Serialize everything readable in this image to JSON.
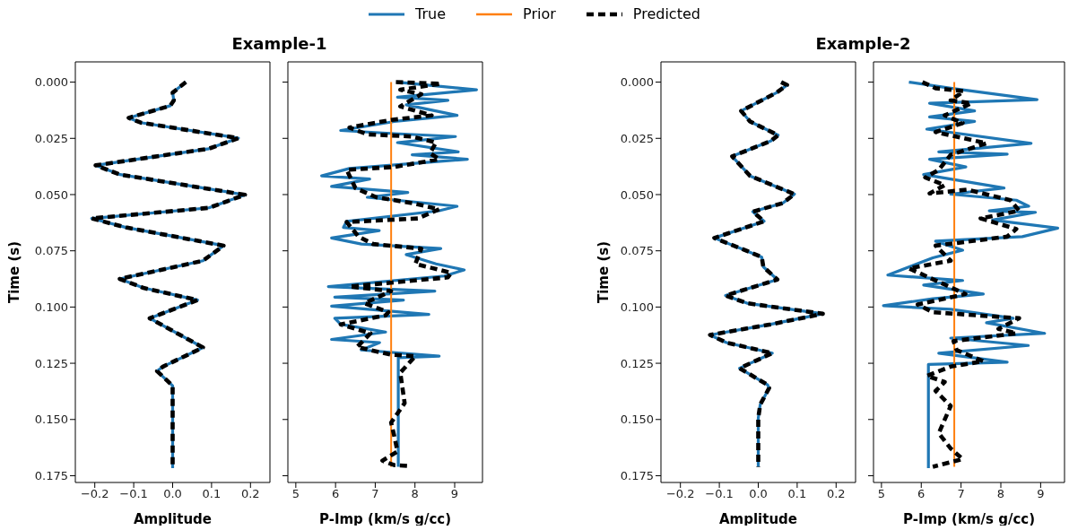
{
  "chart_data": [
    {
      "type": "line",
      "title": "Example-1",
      "xlabel": "Amplitude",
      "ylabel": "Time (s)",
      "xlim": [
        -0.25,
        0.25
      ],
      "xticks": [
        {
          "value": -0.2,
          "label": "−0.2"
        },
        {
          "value": -0.1,
          "label": "−0.1"
        },
        {
          "value": 0,
          "label": "0.0"
        },
        0.1,
        0.2
      ],
      "ylim": [
        0.178,
        -0.009
      ],
      "yticks": [
        {
          "value": 0,
          "label": "0.000"
        },
        0.025,
        {
          "value": 0.05,
          "label": "0.050"
        },
        0.075,
        {
          "value": 0.1,
          "label": "0.100"
        },
        0.125,
        {
          "value": 0.15,
          "label": "0.150"
        },
        0.175
      ],
      "series": [
        {
          "color": "#1f77b4",
          "line_style": "solid",
          "x": [
            0.034,
            0.0,
            0.003,
            -0.006,
            -0.113,
            -0.082,
            0.169,
            0.093,
            -0.198,
            -0.135,
            0.186,
            0.093,
            -0.208,
            -0.12,
            0.131,
            0.078,
            -0.136,
            -0.075,
            0.064,
            -0.059,
            0.078,
            -0.025,
            -0.04,
            0,
            0,
            0
          ],
          "values": [
            0,
            0.0047,
            0.0081,
            0.0105,
            0.0159,
            0.018,
            0.0249,
            0.0296,
            0.037,
            0.0411,
            0.0501,
            0.0559,
            0.0606,
            0.0646,
            0.0727,
            0.0794,
            0.0875,
            0.0915,
            0.0969,
            0.105,
            0.118,
            0.1265,
            0.1285,
            0.135,
            0.1494,
            0.1716
          ]
        },
        {
          "color": "#000000",
          "line_style": "dashed",
          "x": [
            0.034,
            0.0,
            0.003,
            -0.006,
            -0.113,
            -0.082,
            0.169,
            0.093,
            -0.198,
            -0.135,
            0.186,
            0.093,
            -0.208,
            -0.12,
            0.131,
            0.078,
            -0.136,
            -0.075,
            0.064,
            -0.059,
            0.078,
            -0.025,
            -0.04,
            0,
            0,
            0
          ],
          "values": [
            0,
            0.0047,
            0.0081,
            0.0105,
            0.0159,
            0.018,
            0.0249,
            0.0296,
            0.037,
            0.0411,
            0.0501,
            0.0559,
            0.0606,
            0.0646,
            0.0727,
            0.0794,
            0.0875,
            0.0915,
            0.0969,
            0.105,
            0.118,
            0.1265,
            0.1285,
            0.135,
            0.1494,
            0.1716
          ]
        }
      ]
    },
    {
      "type": "line",
      "xlabel": "P-Imp (km/s g/cc)",
      "legend": "top",
      "tick_labels": "x",
      "xlim": [
        4.8,
        9.7
      ],
      "xticks": [
        5,
        6,
        7,
        8,
        9
      ],
      "ylim": [
        0.178,
        -0.009
      ],
      "yticks": [
        0,
        0.025,
        0.05,
        0.075,
        0.1,
        0.125,
        0.15,
        0.175
      ],
      "series": [
        {
          "name": "True",
          "color": "#1f77b4",
          "line_style": "solid",
          "x": [
            7.56,
            9.55,
            7.56,
            8.83,
            7.78,
            9.06,
            7.48,
            6.13,
            7.48,
            9.02,
            7.56,
            9.09,
            7.93,
            9.32,
            6.35,
            5.65,
            6.86,
            5.9,
            7.82,
            6.8,
            9.06,
            8.61,
            6.28,
            6.2,
            7.1,
            5.9,
            6.65,
            8.65,
            7.78,
            8.53,
            9.24,
            8.74,
            5.82,
            8.5,
            5.98,
            7.71,
            5.9,
            8.35,
            5.98,
            6.13,
            7.26,
            5.9,
            7.11,
            6.65,
            8.61,
            7.58,
            7.58
          ],
          "values": [
            0,
            0.0034,
            0.0067,
            0.0081,
            0.0101,
            0.0148,
            0.0175,
            0.0215,
            0.0229,
            0.0242,
            0.0269,
            0.031,
            0.0323,
            0.0343,
            0.0384,
            0.0417,
            0.0431,
            0.0464,
            0.0491,
            0.0512,
            0.0552,
            0.0572,
            0.0619,
            0.0646,
            0.066,
            0.0693,
            0.072,
            0.074,
            0.0767,
            0.0808,
            0.0835,
            0.0862,
            0.0909,
            0.0929,
            0.0956,
            0.0969,
            0.0996,
            0.1033,
            0.105,
            0.1077,
            0.1111,
            0.1144,
            0.1158,
            0.1191,
            0.1218,
            0.1225,
            0.171
          ]
        },
        {
          "name": "Prior",
          "color": "#ff7f0e",
          "line_style": "solid",
          "x": [
            7.4,
            7.4
          ],
          "values": [
            0,
            0.171
          ]
        },
        {
          "name": "Predicted",
          "color": "#000000",
          "line_style": "dashed",
          "x": [
            7.52,
            8.65,
            7.63,
            8.16,
            7.63,
            8.42,
            7.4,
            6.35,
            6.8,
            7.93,
            8.53,
            8.38,
            8.61,
            7.48,
            6.28,
            6.5,
            7.03,
            7.93,
            8.61,
            8.08,
            6.28,
            6.58,
            6.95,
            8.16,
            8.01,
            8.91,
            8.83,
            6.35,
            7.4,
            6.73,
            7.33,
            7.26,
            6.13,
            6.88,
            6.54,
            7.4,
            8.01,
            7.63,
            7.74,
            7.4,
            7.48,
            7.56,
            7.18,
            7.48,
            7.86
          ],
          "values": [
            0,
            0.0007,
            0.0034,
            0.0054,
            0.0108,
            0.0148,
            0.0168,
            0.0202,
            0.0232,
            0.0242,
            0.0269,
            0.0316,
            0.0343,
            0.0377,
            0.039,
            0.0471,
            0.0512,
            0.0538,
            0.0565,
            0.0606,
            0.0622,
            0.0687,
            0.072,
            0.074,
            0.0808,
            0.0848,
            0.0868,
            0.0909,
            0.0929,
            0.0983,
            0.1023,
            0.1037,
            0.1077,
            0.1117,
            0.1178,
            0.1212,
            0.1218,
            0.1292,
            0.1427,
            0.1514,
            0.1575,
            0.1642,
            0.1683,
            0.1703,
            0.1707
          ]
        }
      ]
    },
    {
      "type": "line",
      "title": "Example-2",
      "xlabel": "Amplitude",
      "ylabel": "Time (s)",
      "xlim": [
        -0.25,
        0.25
      ],
      "xticks": [
        {
          "value": -0.2,
          "label": "−0.2"
        },
        {
          "value": -0.1,
          "label": "−0.1"
        },
        {
          "value": 0,
          "label": "0.0"
        },
        0.1,
        0.2
      ],
      "ylim": [
        0.178,
        -0.009
      ],
      "yticks": [
        {
          "value": 0,
          "label": "0.000"
        },
        0.025,
        {
          "value": 0.05,
          "label": "0.050"
        },
        0.075,
        {
          "value": 0.1,
          "label": "0.100"
        },
        0.125,
        {
          "value": 0.15,
          "label": "0.150"
        },
        0.175
      ],
      "series": [
        {
          "color": "#1f77b4",
          "line_style": "solid",
          "x": [
            0.059,
            0.074,
            0.047,
            -0.044,
            -0.021,
            0.051,
            0.032,
            -0.067,
            -0.021,
            0.093,
            0.063,
            -0.014,
            0.015,
            -0.113,
            -0.044,
            0.009,
            0.013,
            0.049,
            -0.084,
            -0.029,
            0.166,
            0.032,
            -0.124,
            -0.082,
            0.036,
            -0.048,
            0.024,
            0.028,
            0.005,
            0,
            0
          ],
          "values": [
            0,
            0.0013,
            0.0047,
            0.0128,
            0.0175,
            0.0236,
            0.0262,
            0.033,
            0.0417,
            0.0498,
            0.0538,
            0.0576,
            0.0619,
            0.0693,
            0.074,
            0.0778,
            0.0821,
            0.0878,
            0.0949,
            0.0983,
            0.103,
            0.1077,
            0.1124,
            0.1158,
            0.1205,
            0.1272,
            0.1346,
            0.136,
            0.1434,
            0.1494,
            0.171
          ]
        },
        {
          "color": "#000000",
          "line_style": "dashed",
          "x": [
            0.059,
            0.074,
            0.047,
            -0.044,
            -0.021,
            0.051,
            0.032,
            -0.067,
            -0.021,
            0.093,
            0.063,
            -0.014,
            0.015,
            -0.113,
            -0.044,
            0.009,
            0.013,
            0.049,
            -0.084,
            -0.029,
            0.166,
            0.032,
            -0.124,
            -0.082,
            0.036,
            -0.048,
            0.024,
            0.028,
            0.005,
            0,
            0
          ],
          "values": [
            0,
            0.0013,
            0.0047,
            0.0128,
            0.0175,
            0.0236,
            0.0262,
            0.033,
            0.0417,
            0.0498,
            0.0538,
            0.0576,
            0.0619,
            0.0693,
            0.074,
            0.0778,
            0.0821,
            0.0878,
            0.0949,
            0.0983,
            0.103,
            0.1077,
            0.1124,
            0.1158,
            0.1205,
            0.1272,
            0.1346,
            0.136,
            0.1434,
            0.1494,
            0.171
          ]
        }
      ]
    },
    {
      "type": "line",
      "xlabel": "P-Imp (km/s g/cc)",
      "tick_labels": "x",
      "xlim": [
        4.8,
        9.6
      ],
      "xticks": [
        5,
        6,
        7,
        8,
        9
      ],
      "ylim": [
        0.178,
        -0.009
      ],
      "yticks": [
        0,
        0.025,
        0.05,
        0.075,
        0.1,
        0.125,
        0.15,
        0.175
      ],
      "series": [
        {
          "color": "#1f77b4",
          "line_style": "solid",
          "x": [
            5.69,
            6.74,
            8.91,
            6.21,
            7.34,
            6.21,
            7.34,
            6.14,
            8.76,
            6.44,
            8.16,
            6.21,
            7.12,
            6.06,
            8.08,
            6.74,
            8.39,
            8.7,
            7.71,
            8.87,
            7.79,
            9.43,
            8.54,
            6.36,
            7.04,
            6.29,
            5.16,
            7.04,
            6.06,
            7.56,
            6.29,
            5.05,
            6.74,
            8.31,
            7.64,
            9.1,
            6.74,
            8.69,
            6.44,
            8.16,
            6.18,
            6.18
          ],
          "values": [
            0,
            0.0027,
            0.0078,
            0.0094,
            0.0128,
            0.0155,
            0.0175,
            0.0209,
            0.0272,
            0.031,
            0.032,
            0.0343,
            0.0377,
            0.0411,
            0.0471,
            0.0498,
            0.0525,
            0.0552,
            0.0572,
            0.0579,
            0.0613,
            0.0649,
            0.0687,
            0.0707,
            0.0747,
            0.0781,
            0.0858,
            0.0882,
            0.0902,
            0.0942,
            0.0963,
            0.0994,
            0.101,
            0.105,
            0.107,
            0.1117,
            0.1138,
            0.1171,
            0.1205,
            0.1245,
            0.1255,
            0.1716
          ]
        },
        {
          "color": "#ff7f0e",
          "line_style": "solid",
          "x": [
            6.83,
            6.83
          ],
          "values": [
            0,
            0.171
          ]
        },
        {
          "color": "#000000",
          "line_style": "dashed",
          "x": [
            6.03,
            6.36,
            7.07,
            6.74,
            7.26,
            6.59,
            7.04,
            6.36,
            7.64,
            6.74,
            6.44,
            6.1,
            6.59,
            6.21,
            7.16,
            8.24,
            8.46,
            7.49,
            8.39,
            8.16,
            6.36,
            6.74,
            5.69,
            7.11,
            5.91,
            6.29,
            8.46,
            7.94,
            8.39,
            6.81,
            6.89,
            7.56,
            6.74,
            6.14,
            6.59,
            6.36,
            6.74,
            6.44,
            6.74,
            7.04,
            6.29
          ],
          "values": [
            0,
            0.0027,
            0.004,
            0.0081,
            0.0094,
            0.0148,
            0.0182,
            0.0222,
            0.0272,
            0.0323,
            0.039,
            0.0424,
            0.0458,
            0.0495,
            0.0478,
            0.0525,
            0.0572,
            0.0606,
            0.0653,
            0.0687,
            0.0727,
            0.0794,
            0.0828,
            0.0942,
            0.0989,
            0.1023,
            0.105,
            0.1097,
            0.1117,
            0.1151,
            0.1191,
            0.1241,
            0.1265,
            0.1306,
            0.1333,
            0.1373,
            0.144,
            0.1561,
            0.1629,
            0.1676,
            0.171
          ]
        }
      ]
    }
  ]
}
